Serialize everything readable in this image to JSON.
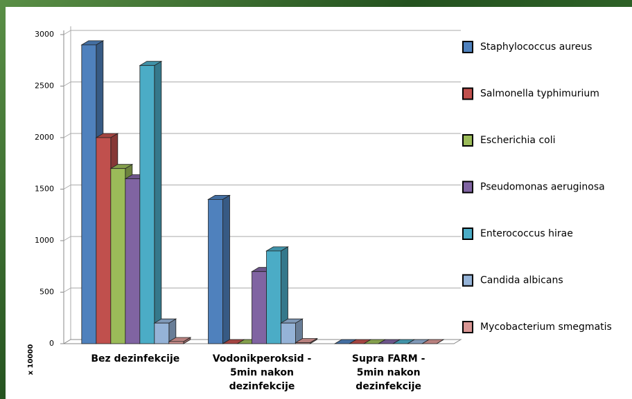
{
  "chart_data": {
    "type": "bar3d",
    "y_label": "x 10000",
    "categories": [
      "Bez dezinfekcije",
      "Vodonikperoksid - 5min nakon dezinfekcije",
      "Supra FARM - 5min nakon dezinfekcije"
    ],
    "series": [
      {
        "name": "Staphylococcus aureus",
        "color": "#4f81bd",
        "values": [
          2900,
          1400,
          0
        ]
      },
      {
        "name": "Salmonella typhimurium",
        "color": "#c0504d",
        "values": [
          2000,
          0,
          0
        ]
      },
      {
        "name": "Escherichia coli",
        "color": "#9bbb59",
        "values": [
          1700,
          0,
          0
        ]
      },
      {
        "name": "Pseudomonas aeruginosa",
        "color": "#8064a2",
        "values": [
          1600,
          700,
          0
        ]
      },
      {
        "name": "Enterococcus hirae",
        "color": "#4bacc6",
        "values": [
          2700,
          900,
          0
        ]
      },
      {
        "name": "Candida albicans",
        "color": "#95b3d7",
        "values": [
          200,
          200,
          0
        ]
      },
      {
        "name": "Mycobacterium smegmatis",
        "color": "#d99694",
        "values": [
          20,
          10,
          0
        ]
      }
    ],
    "ylim": [
      0,
      3000
    ],
    "yticks": [
      0,
      500,
      1000,
      1500,
      2000,
      2500,
      3000
    ],
    "grid": true
  }
}
